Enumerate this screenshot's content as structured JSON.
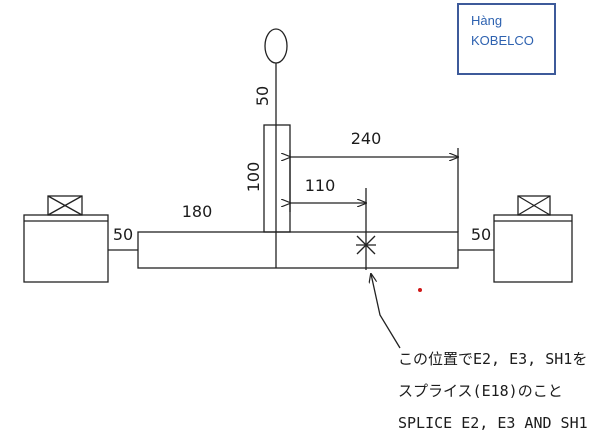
{
  "brand": {
    "line1": "Hàng",
    "line2": "KOBELCO"
  },
  "dimensions": {
    "mast_length": "50",
    "column_height": "100",
    "length_240": "240",
    "length_110": "110",
    "length_180": "180",
    "left_gap": "50",
    "right_gap": "50"
  },
  "note": {
    "line1": "この位置でE2, E3, SH1を",
    "line2": "スプライス(E18)のこと",
    "line3": "SPLICE E2, E3 AND SH1"
  }
}
